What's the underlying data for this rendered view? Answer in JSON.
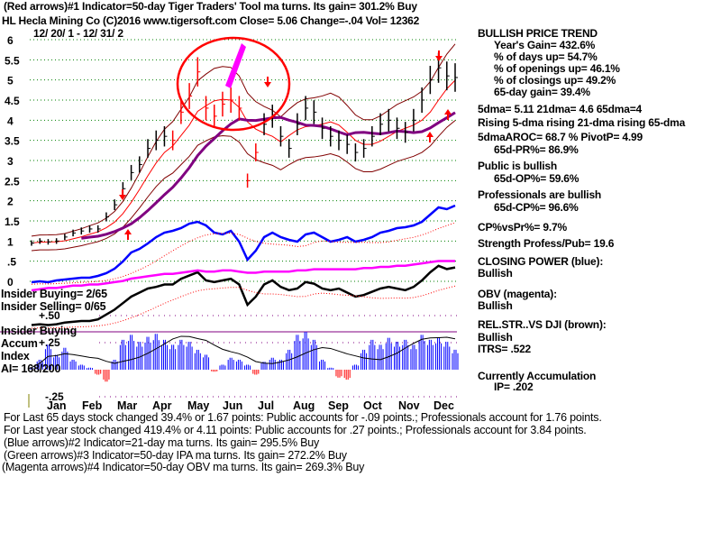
{
  "header": {
    "indicator1": "(Red arrows)#1 Indicator=50-day Tiger Traders' Tool ma turns. Its gain= 301.2% Buy",
    "ticker_line": "HL   Hecla Mining Co  (C)2016 www.tigersoft.com    Close=  5.06  Change=-.04 Vol= 12362",
    "date_range": "12/ 20/ 1 - 12/ 31/ 2"
  },
  "right_panel": {
    "trend": "BULLISH PRICE TREND",
    "years_gain": "Year's Gain= 432.6%",
    "days_up": "% of days up= 54.7%",
    "openings_up": "% of openings up= 46.1%",
    "closings_up": "% of closings up= 49.2%",
    "gain_65": "65-day gain= 39.4%",
    "dma": "5dma= 5.11 21dma= 4.6 65dma=4",
    "rising": "Rising 5-dma  rising 21-dma  rising 65-dma",
    "aroc": "5dmaAROC= 68.7 %  PivotP= 4.99",
    "pr": "65d-PR%= 86.9%",
    "public": "Public is bullish",
    "op": "65d-OP%= 59.6%",
    "pros": "Professionals are bullish",
    "cp": "65d-CP%= 96.6%",
    "cpvspr": "CP%vsPr%=  9.7%",
    "strength": "Strength Profess/Pub= 19.6",
    "closing_power": "CLOSING POWER (blue):",
    "closing_power_status": "Bullish",
    "obv": "OBV (magenta):",
    "obv_status": "Bullish",
    "relstr": "REL.STR..VS DJI (brown):",
    "relstr_status": "Bullish",
    "itrs": "ITRS= .522",
    "accum": "Currently Accumulation",
    "ip": "IP=  .202"
  },
  "left_labels": {
    "insider_buying": "Insider Buying= 2/65",
    "insider_selling": "Insider Selling= 0/65",
    "insider_buying2": "Insider Buying",
    "accum": "Accum",
    "index": "Index",
    "ai": "AI= 168/200"
  },
  "footer": {
    "line1": "For Last 65 days stock changed  39.4% or  1.67 points:  Public accounts for -.09 points.;  Professionals account for  1.76 points.",
    "line2": "For Last year stock changed  419.4% or  4.11 points:  Public accounts for  .27 points.;  Professionals account for  3.84 points.",
    "line3": "(Blue arrows)#2 Indicator=21-day ma turns. Its gain= 295.5% Buy",
    "line4": "(Green arrows)#3 Indicator=50-day IPA ma turns. Its gain= 272.2% Buy",
    "line5": "(Magenta arrows)#4 Indicator=50-day OBV ma turns. Its gain= 269.3% Buy"
  },
  "colors": {
    "grid": "#008000",
    "price": "#000000",
    "ma21": "#ff0000",
    "ma65": "#800080",
    "band": "#800000",
    "cp": "#0000ff",
    "obv": "#ff00ff",
    "accum": "#0000ff",
    "accum_neg": "#ff0000"
  },
  "chart_data": {
    "type": "line",
    "title": "HL Hecla Mining Co",
    "y_ticks": [
      "6",
      "5.5",
      "5",
      "4.5",
      "4",
      "3.5",
      "3",
      "2.5",
      "2",
      "1.5",
      "1",
      ".5",
      "0"
    ],
    "ylim": [
      0,
      6
    ],
    "accum_ticks": [
      "+.50",
      "+.25",
      "-.25"
    ],
    "accum_lim": [
      -0.25,
      0.5
    ],
    "months": [
      "Jan",
      "Feb",
      "Mar",
      "Apr",
      "May",
      "Jun",
      "Jul",
      "Aug",
      "Sep",
      "Oct",
      "Nov",
      "Dec"
    ],
    "price_close": [
      0.95,
      1.0,
      0.98,
      1.0,
      1.1,
      1.2,
      1.25,
      1.3,
      1.3,
      1.6,
      1.9,
      2.3,
      2.7,
      2.9,
      3.3,
      3.5,
      3.6,
      3.5,
      4.2,
      4.6,
      5.2,
      4.3,
      4.1,
      4.4,
      4.5,
      4.3,
      2.5,
      3.2,
      3.9,
      4.1,
      3.6,
      3.3,
      3.9,
      4.3,
      4.2,
      3.8,
      3.6,
      3.5,
      3.4,
      3.2,
      3.3,
      3.6,
      3.9,
      4.0,
      3.8,
      3.7,
      4.0,
      4.5,
      5.0,
      5.3,
      5.1,
      5.06
    ],
    "closing_power": [
      5,
      6,
      5,
      7,
      8,
      9,
      10,
      10,
      12,
      15,
      20,
      28,
      38,
      42,
      48,
      55,
      60,
      62,
      65,
      70,
      72,
      68,
      60,
      58,
      62,
      50,
      30,
      40,
      55,
      60,
      55,
      52,
      50,
      58,
      60,
      55,
      50,
      52,
      55,
      50,
      52,
      55,
      60,
      62,
      65,
      66,
      68,
      72,
      80,
      88,
      86,
      90
    ],
    "obv": [
      10,
      11,
      12,
      12,
      13,
      14,
      14,
      15,
      15,
      16,
      17,
      18,
      20,
      21,
      22,
      23,
      24,
      24,
      25,
      26,
      27,
      26,
      26,
      27,
      27,
      26,
      25,
      25,
      26,
      26,
      26,
      26,
      27,
      27,
      28,
      28,
      28,
      28,
      28,
      28,
      29,
      29,
      30,
      30,
      31,
      31,
      32,
      33,
      34,
      35,
      35,
      35
    ],
    "rel_str": [
      5,
      6,
      5,
      6,
      8,
      9,
      10,
      10,
      12,
      18,
      24,
      32,
      40,
      45,
      50,
      52,
      55,
      55,
      62,
      66,
      70,
      60,
      58,
      60,
      62,
      55,
      30,
      40,
      55,
      60,
      52,
      48,
      50,
      58,
      56,
      50,
      48,
      50,
      45,
      40,
      42,
      46,
      50,
      52,
      50,
      48,
      52,
      60,
      70,
      78,
      74,
      76
    ],
    "accum_index": [
      0.02,
      0.1,
      0.25,
      0.15,
      0.22,
      0.1,
      0.05,
      0.02,
      -0.05,
      -0.12,
      0.1,
      0.3,
      0.35,
      0.28,
      0.33,
      0.36,
      0.3,
      0.25,
      0.3,
      0.28,
      0.2,
      0.15,
      -0.02,
      0.05,
      0.12,
      0.1,
      0.05,
      -0.05,
      0.08,
      0.12,
      0.1,
      0.2,
      0.35,
      0.38,
      0.3,
      0.1,
      0.02,
      -0.08,
      -0.1,
      0.05,
      0.2,
      0.3,
      0.25,
      0.32,
      0.28,
      0.3,
      0.25,
      0.35,
      0.3,
      0.32,
      0.28,
      0.2
    ]
  }
}
